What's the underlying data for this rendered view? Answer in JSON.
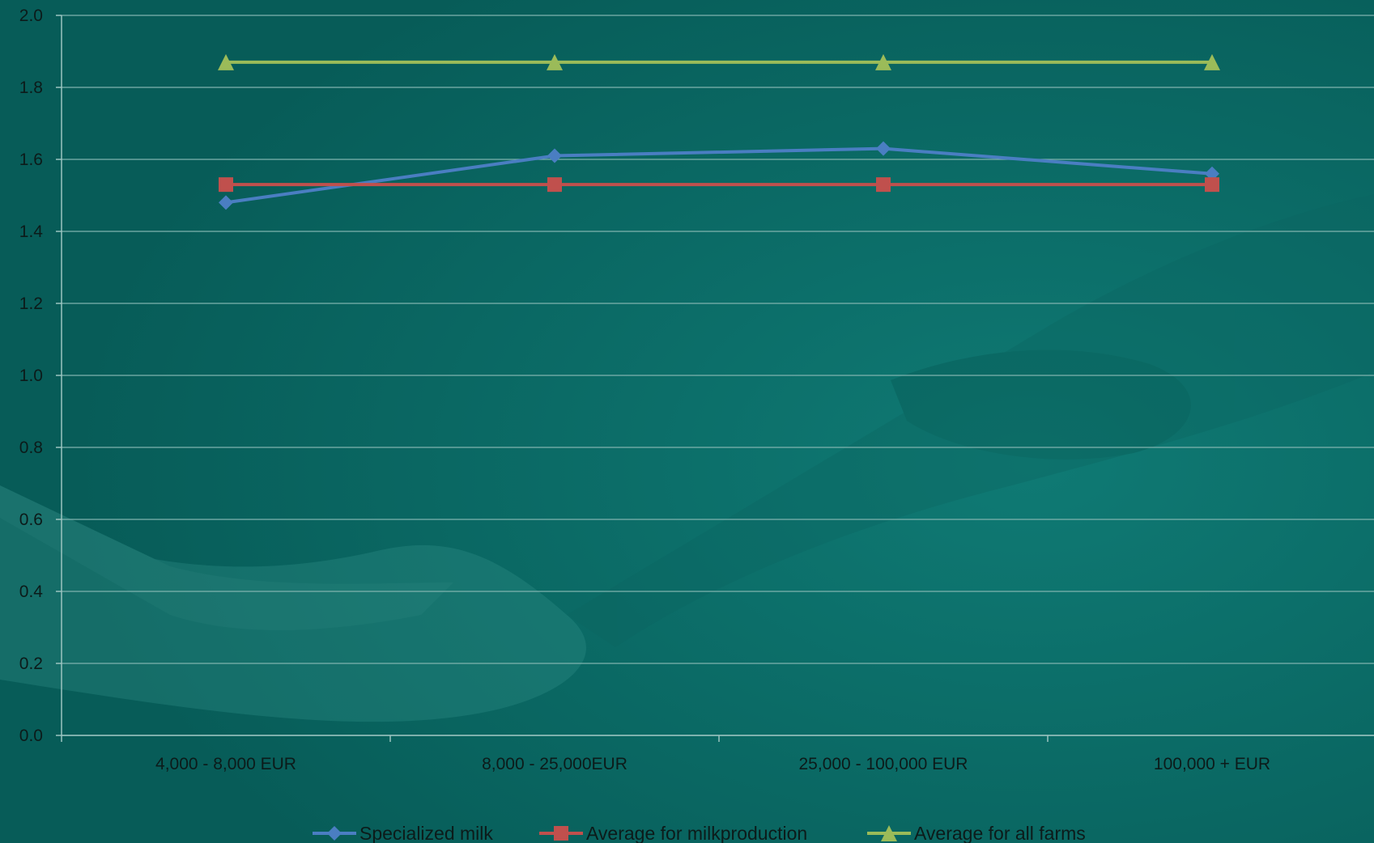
{
  "chart_data": {
    "type": "line",
    "categories": [
      "4,000 - 8,000 EUR",
      "8,000 - 25,000EUR",
      "25,000 - 100,000 EUR",
      "100,000 + EUR"
    ],
    "series": [
      {
        "name": "Specialized milk",
        "values": [
          1.48,
          1.61,
          1.63,
          1.56
        ],
        "color": "#4a7ec2",
        "marker": "diamond"
      },
      {
        "name": "Average for milkproduction",
        "values": [
          1.53,
          1.53,
          1.53,
          1.53
        ],
        "color": "#c0504d",
        "marker": "square"
      },
      {
        "name": "Average for all farms",
        "values": [
          1.87,
          1.87,
          1.87,
          1.87
        ],
        "color": "#9bbb59",
        "marker": "triangle"
      }
    ],
    "ylim": [
      0,
      2
    ],
    "yticks": [
      "0.0",
      "0.2",
      "0.4",
      "0.6",
      "0.8",
      "1.0",
      "1.2",
      "1.4",
      "1.6",
      "1.8",
      "2.0"
    ],
    "title": "",
    "xlabel": "",
    "ylabel": "",
    "grid": true,
    "legend_position": "bottom",
    "colors": {
      "background": "#0a6b66",
      "grid": "#7fb3ae",
      "axis": "#9cc4c0",
      "text": "#0c1b1a"
    }
  }
}
